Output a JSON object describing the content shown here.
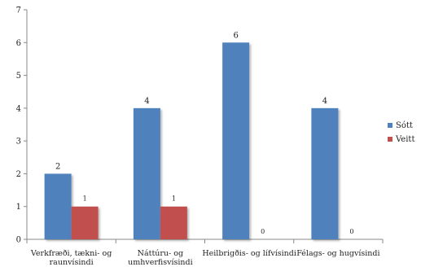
{
  "chart_data": {
    "type": "bar",
    "categories": [
      [
        "Verkfræði, tækni- og",
        "raunvísindi"
      ],
      [
        "Náttúru- og",
        "umhverfisvísindi"
      ],
      [
        "Heilbrigðis- og lífvísindi"
      ],
      [
        "Félags- og hugvísindi"
      ]
    ],
    "series": [
      {
        "name": "Sótt",
        "values": [
          2,
          4,
          6,
          4
        ],
        "color": "#4f81bd"
      },
      {
        "name": "Veitt",
        "values": [
          1,
          1,
          0,
          0
        ],
        "color": "#c0504d"
      }
    ],
    "yticks": [
      0,
      1,
      2,
      3,
      4,
      5,
      6,
      7
    ],
    "ylim": [
      0,
      7
    ],
    "grid": false,
    "legend": "right",
    "title": "",
    "xlabel": "",
    "ylabel": ""
  }
}
